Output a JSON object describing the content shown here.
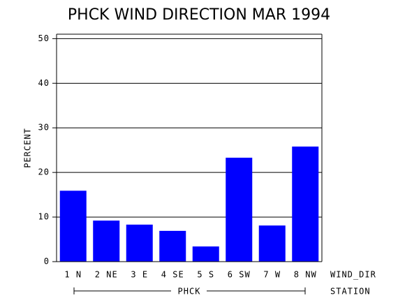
{
  "chart_data": {
    "type": "bar",
    "title": "PHCK WIND DIRECTION MAR 1994",
    "y_label": "PERCENT",
    "x_label": "WIND_DIR",
    "group_label": "PHCK",
    "group_axis_label": "STATION",
    "categories": [
      "1 N",
      "2 NE",
      "3 E",
      "4 SE",
      "5 S",
      "6 SW",
      "7 W",
      "8 NW"
    ],
    "values": [
      15.9,
      9.2,
      8.3,
      6.9,
      3.4,
      23.3,
      8.1,
      25.8
    ],
    "color": "#0000ff",
    "ylim": [
      0,
      51
    ],
    "yticks": [
      0,
      10,
      20,
      30,
      40,
      50
    ],
    "grid": true
  }
}
